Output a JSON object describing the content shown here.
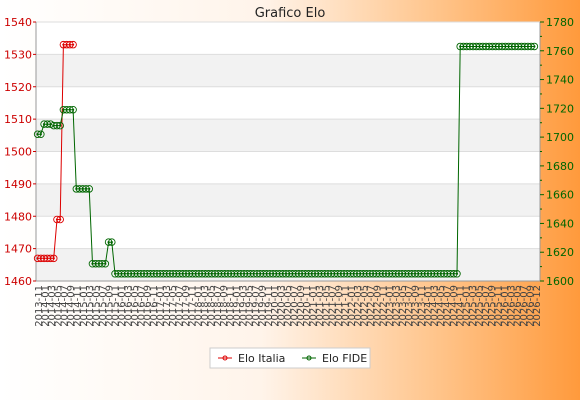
{
  "chart_data": {
    "type": "line",
    "title": "Grafico Elo",
    "y_left_label": "",
    "y_right_label": "",
    "y_left_ticks": [
      "1540",
      "1530",
      "1520",
      "1510",
      "1500",
      "1490",
      "1480",
      "1470",
      "1460"
    ],
    "y_left_range": [
      1460,
      1540
    ],
    "y_right_ticks": [
      "1780",
      "1760",
      "1740",
      "1720",
      "1700",
      "1680",
      "1660",
      "1640",
      "1620",
      "1600"
    ],
    "y_right_range": [
      1600,
      1780
    ],
    "legend_position": "bottom",
    "x_labels": [
      "2013-11",
      "2014-01",
      "2014-03",
      "2014-05",
      "2014-07",
      "2014-09",
      "2014-11",
      "2015-01",
      "2015-03",
      "2015-05",
      "2015-07",
      "2015-09",
      "2015-11",
      "2016-01",
      "2016-03",
      "2016-05",
      "2016-07",
      "2016-09",
      "2016-11",
      "2017-01",
      "2017-03",
      "2017-05",
      "2017-07",
      "2017-09",
      "2017-11",
      "2018-01",
      "2018-03",
      "2018-05",
      "2018-07",
      "2018-09",
      "2018-11",
      "2019-01",
      "2019-03",
      "2019-05",
      "2019-07",
      "2019-09",
      "2019-11",
      "2020-01",
      "2020-03",
      "2020-05",
      "2020-07",
      "2020-09",
      "2020-11",
      "2021-01",
      "2021-03",
      "2021-05",
      "2021-07",
      "2021-09",
      "2021-11",
      "2022-01",
      "2022-03",
      "2022-05",
      "2022-07",
      "2022-09",
      "2022-11",
      "2023-01",
      "2023-03",
      "2023-05",
      "2023-07",
      "2023-09",
      "2023-11",
      "2024-01",
      "2024-03",
      "2024-05",
      "2024-07",
      "2024-09",
      "2024-11",
      "2025-01",
      "2025-03",
      "2025-05",
      "2025-07",
      "2025-09",
      "2025-11",
      "2026-01",
      "2026-03",
      "2026-05",
      "2026-07",
      "2026-09",
      "2026-12"
    ],
    "series": [
      {
        "name": "Elo Italia",
        "color": "#dd0000",
        "axis": "left",
        "values": [
          1467,
          1467,
          1467,
          1467,
          1467,
          1467,
          1479,
          1479,
          1533,
          1533,
          1533,
          1533
        ]
      },
      {
        "name": "Elo FIDE",
        "color": "#006600",
        "axis": "right",
        "values": [
          1702,
          1702,
          1709,
          1709,
          1709,
          1708,
          1708,
          1708,
          1719,
          1719,
          1719,
          1719,
          1664,
          1664,
          1664,
          1664,
          1664,
          1612,
          1612,
          1612,
          1612,
          1612,
          1627,
          1627,
          1605,
          1605,
          1605,
          1605,
          1605,
          1605,
          1605,
          1605,
          1605,
          1605,
          1605,
          1605,
          1605,
          1605,
          1605,
          1605,
          1605,
          1605,
          1605,
          1605,
          1605,
          1605,
          1605,
          1605,
          1605,
          1605,
          1605,
          1605,
          1605,
          1605,
          1605,
          1605,
          1605,
          1605,
          1605,
          1605,
          1605,
          1605,
          1605,
          1605,
          1605,
          1605,
          1605,
          1605,
          1605,
          1605,
          1605,
          1605,
          1605,
          1605,
          1605,
          1605,
          1605,
          1605,
          1605,
          1605,
          1605,
          1605,
          1605,
          1605,
          1605,
          1605,
          1605,
          1605,
          1605,
          1605,
          1605,
          1605,
          1605,
          1605,
          1605,
          1605,
          1605,
          1605,
          1605,
          1605,
          1605,
          1605,
          1605,
          1605,
          1605,
          1605,
          1605,
          1605,
          1605,
          1605,
          1605,
          1605,
          1605,
          1605,
          1605,
          1605,
          1605,
          1605,
          1605,
          1605,
          1605,
          1605,
          1605,
          1605,
          1605,
          1605,
          1605,
          1605,
          1605,
          1605,
          1605,
          1763,
          1763,
          1763,
          1763,
          1763,
          1763,
          1763,
          1763,
          1763,
          1763,
          1763,
          1763,
          1763,
          1763,
          1763,
          1763,
          1763,
          1763,
          1763,
          1763,
          1763,
          1763,
          1763,
          1763
        ]
      }
    ]
  }
}
